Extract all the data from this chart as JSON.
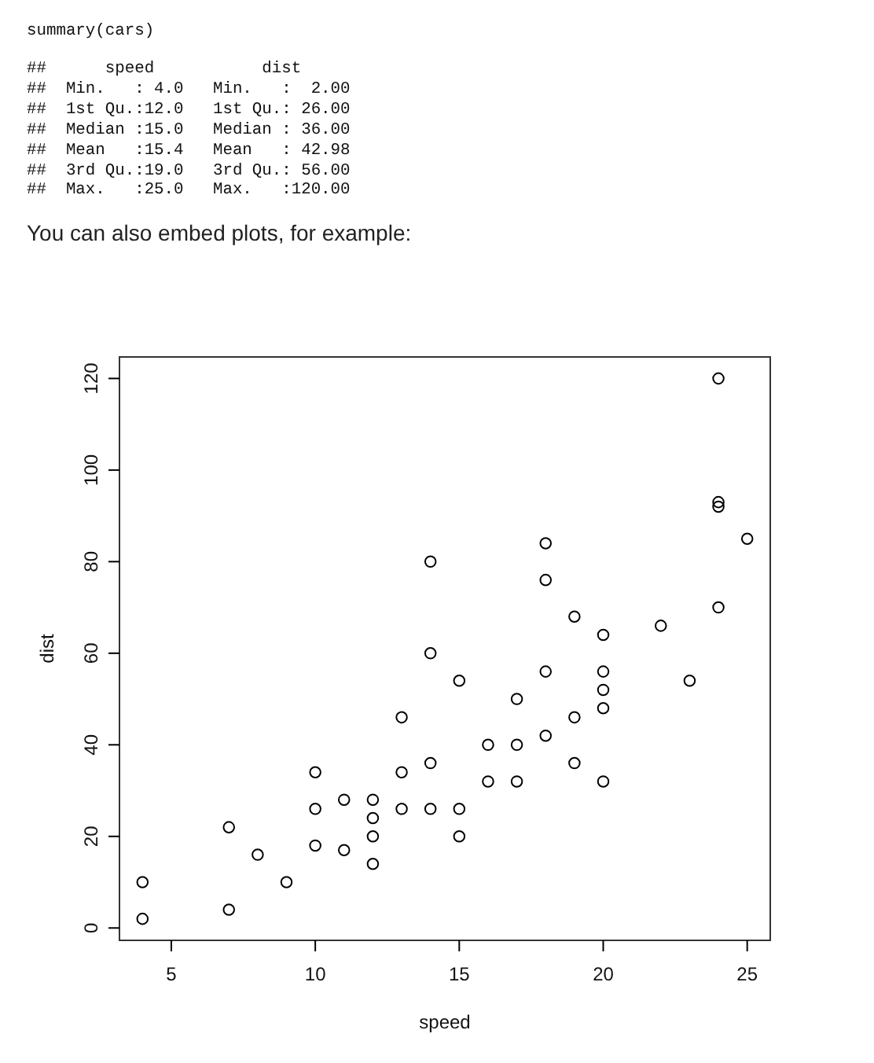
{
  "chart_data": {
    "type": "scatter",
    "xlabel": "speed",
    "ylabel": "dist",
    "annotations": [
      "summary(cars)",
      "##      speed           dist",
      "##  Min.   : 4.0   Min.   :  2.00",
      "##  1st Qu.:12.0   1st Qu.: 26.00",
      "##  Median :15.0   Median : 36.00",
      "##  Mean   :15.4   Mean   : 42.98",
      "##  3rd Qu.:19.0   3rd Qu.: 56.00",
      "##  Max.   :25.0   Max.   :120.00",
      "You can also embed plots, for example:"
    ],
    "x": [
      4,
      4,
      7,
      7,
      8,
      9,
      10,
      10,
      10,
      11,
      11,
      12,
      12,
      12,
      12,
      13,
      13,
      13,
      14,
      14,
      14,
      14,
      15,
      15,
      15,
      16,
      16,
      17,
      17,
      17,
      18,
      18,
      18,
      18,
      19,
      19,
      19,
      20,
      20,
      20,
      20,
      20,
      22,
      23,
      24,
      24,
      24,
      24,
      25
    ],
    "values": [
      2,
      10,
      4,
      22,
      16,
      10,
      18,
      26,
      34,
      17,
      28,
      14,
      20,
      24,
      28,
      26,
      34,
      46,
      26,
      36,
      60,
      80,
      20,
      26,
      54,
      32,
      40,
      32,
      40,
      50,
      42,
      56,
      76,
      84,
      36,
      46,
      68,
      32,
      48,
      52,
      56,
      64,
      66,
      54,
      70,
      92,
      93,
      120,
      85
    ],
    "color": "#000000",
    "marker": "circle",
    "xlim": [
      3.2,
      25.8
    ],
    "ylim": [
      -2.7,
      124.7
    ],
    "xticks": [
      5,
      10,
      15,
      20,
      25
    ],
    "yticks": [
      0,
      20,
      40,
      60,
      80,
      100,
      120
    ]
  }
}
